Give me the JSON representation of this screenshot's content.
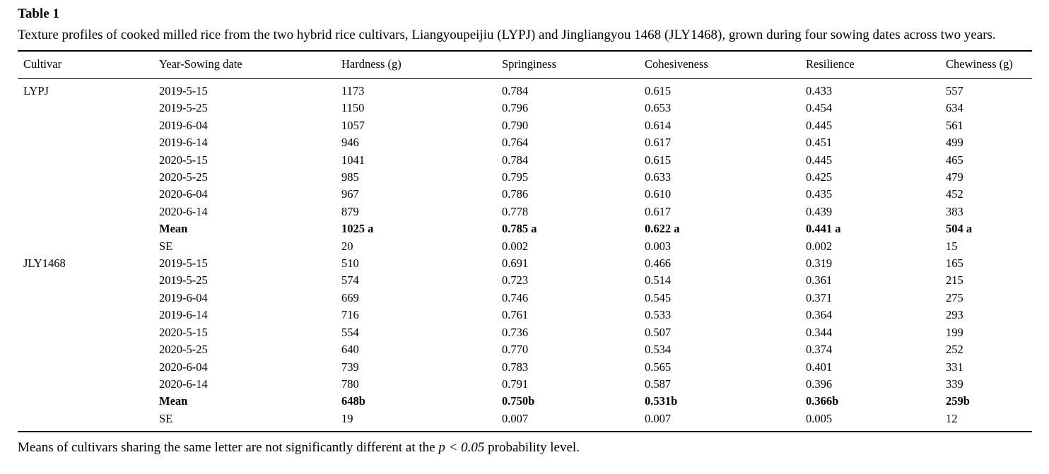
{
  "table": {
    "title": "Table 1",
    "caption": "Texture profiles of cooked milled rice from the two hybrid rice cultivars, Liangyoupeijiu (LYPJ) and Jingliangyou 1468 (JLY1468), grown during four sowing dates across two years.",
    "columns": [
      "Cultivar",
      "Year-Sowing date",
      "Hardness (g)",
      "Springiness",
      "Cohesiveness",
      "Resilience",
      "Chewiness (g)"
    ],
    "groups": [
      {
        "cultivar": "LYPJ",
        "rows": [
          {
            "label": "2019-5-15",
            "values": [
              "1173",
              "0.784",
              "0.615",
              "0.433",
              "557"
            ],
            "bold": false
          },
          {
            "label": "2019-5-25",
            "values": [
              "1150",
              "0.796",
              "0.653",
              "0.454",
              "634"
            ],
            "bold": false
          },
          {
            "label": "2019-6-04",
            "values": [
              "1057",
              "0.790",
              "0.614",
              "0.445",
              "561"
            ],
            "bold": false
          },
          {
            "label": "2019-6-14",
            "values": [
              "946",
              "0.764",
              "0.617",
              "0.451",
              "499"
            ],
            "bold": false
          },
          {
            "label": "2020-5-15",
            "values": [
              "1041",
              "0.784",
              "0.615",
              "0.445",
              "465"
            ],
            "bold": false
          },
          {
            "label": "2020-5-25",
            "values": [
              "985",
              "0.795",
              "0.633",
              "0.425",
              "479"
            ],
            "bold": false
          },
          {
            "label": "2020-6-04",
            "values": [
              "967",
              "0.786",
              "0.610",
              "0.435",
              "452"
            ],
            "bold": false
          },
          {
            "label": "2020-6-14",
            "values": [
              "879",
              "0.778",
              "0.617",
              "0.439",
              "383"
            ],
            "bold": false
          },
          {
            "label": "Mean",
            "values": [
              "1025 a",
              "0.785 a",
              "0.622 a",
              "0.441 a",
              "504 a"
            ],
            "bold": true
          },
          {
            "label": "SE",
            "values": [
              "20",
              "0.002",
              "0.003",
              "0.002",
              "15"
            ],
            "bold": false
          }
        ]
      },
      {
        "cultivar": "JLY1468",
        "rows": [
          {
            "label": "2019-5-15",
            "values": [
              "510",
              "0.691",
              "0.466",
              "0.319",
              "165"
            ],
            "bold": false
          },
          {
            "label": "2019-5-25",
            "values": [
              "574",
              "0.723",
              "0.514",
              "0.361",
              "215"
            ],
            "bold": false
          },
          {
            "label": "2019-6-04",
            "values": [
              "669",
              "0.746",
              "0.545",
              "0.371",
              "275"
            ],
            "bold": false
          },
          {
            "label": "2019-6-14",
            "values": [
              "716",
              "0.761",
              "0.533",
              "0.364",
              "293"
            ],
            "bold": false
          },
          {
            "label": "2020-5-15",
            "values": [
              "554",
              "0.736",
              "0.507",
              "0.344",
              "199"
            ],
            "bold": false
          },
          {
            "label": "2020-5-25",
            "values": [
              "640",
              "0.770",
              "0.534",
              "0.374",
              "252"
            ],
            "bold": false
          },
          {
            "label": "2020-6-04",
            "values": [
              "739",
              "0.783",
              "0.565",
              "0.401",
              "331"
            ],
            "bold": false
          },
          {
            "label": "2020-6-14",
            "values": [
              "780",
              "0.791",
              "0.587",
              "0.396",
              "339"
            ],
            "bold": false
          },
          {
            "label": "Mean",
            "values": [
              "648b",
              "0.750b",
              "0.531b",
              "0.366b",
              "259b"
            ],
            "bold": true
          },
          {
            "label": "SE",
            "values": [
              "19",
              "0.007",
              "0.007",
              "0.005",
              "12"
            ],
            "bold": false
          }
        ]
      }
    ],
    "footnote": {
      "prefix": "Means of cultivars sharing the same letter are not significantly different at the ",
      "italic": "p < 0.05",
      "suffix": " probability level."
    }
  }
}
